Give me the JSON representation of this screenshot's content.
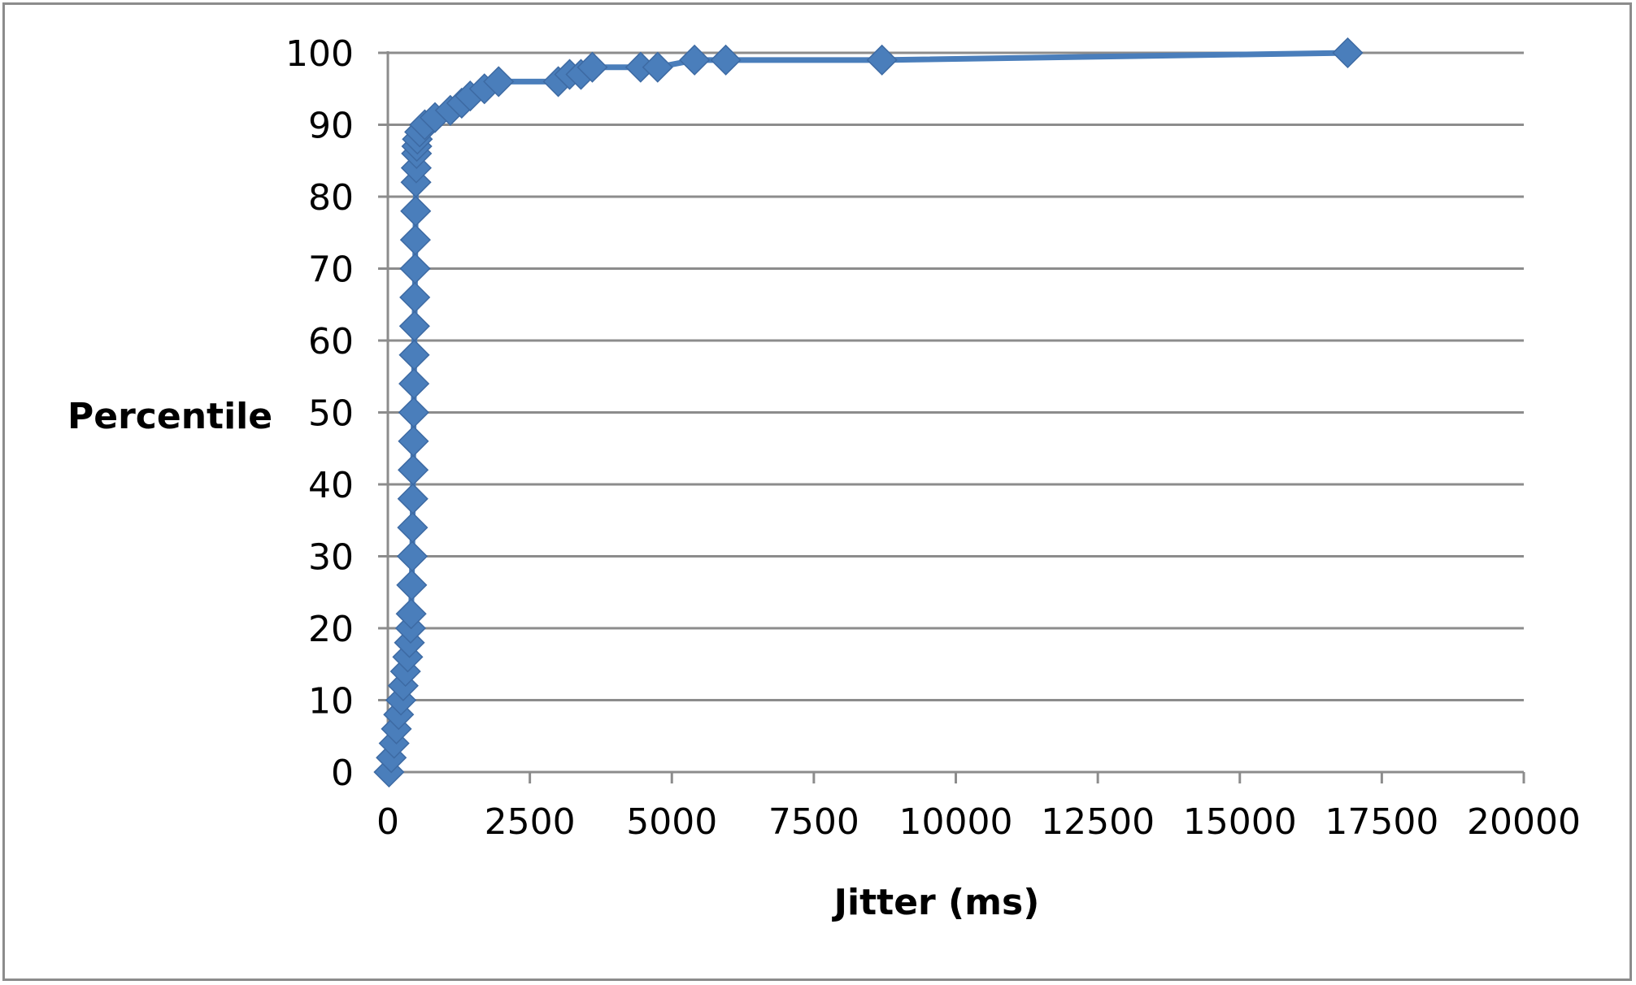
{
  "chart_data": {
    "type": "scatter",
    "title": "",
    "xlabel": "Jitter (ms)",
    "ylabel": "Percentile",
    "xlim": [
      0,
      20000
    ],
    "ylim": [
      0,
      100
    ],
    "x_ticks": [
      "0",
      "2500",
      "5000",
      "7500",
      "10000",
      "12500",
      "15000",
      "17500",
      "20000"
    ],
    "y_ticks": [
      "0",
      "10",
      "20",
      "30",
      "40",
      "50",
      "60",
      "70",
      "80",
      "90",
      "100"
    ],
    "grid": "horizontal",
    "legend": "none",
    "marker": "diamond",
    "line": true,
    "series": [
      {
        "color": "#4a7ebb",
        "x": [
          20,
          60,
          110,
          150,
          190,
          230,
          270,
          310,
          350,
          380,
          400,
          410,
          420,
          430,
          435,
          440,
          445,
          450,
          455,
          460,
          465,
          470,
          475,
          480,
          485,
          490,
          495,
          500,
          505,
          510,
          520,
          560,
          650,
          830,
          1100,
          1300,
          1450,
          1700,
          1950,
          3000,
          3200,
          3400,
          3600,
          4450,
          4750,
          5400,
          5950,
          8700,
          16900
        ],
        "y": [
          0,
          2,
          4,
          6,
          8,
          10,
          12,
          14,
          16,
          18,
          20,
          22,
          26,
          30,
          34,
          38,
          42,
          46,
          50,
          54,
          58,
          62,
          66,
          70,
          74,
          78,
          82,
          84,
          86,
          87,
          88,
          89,
          90,
          91,
          92,
          93,
          94,
          95,
          96,
          96,
          97,
          97,
          98,
          98,
          98,
          99,
          99,
          99,
          100
        ]
      }
    ]
  }
}
